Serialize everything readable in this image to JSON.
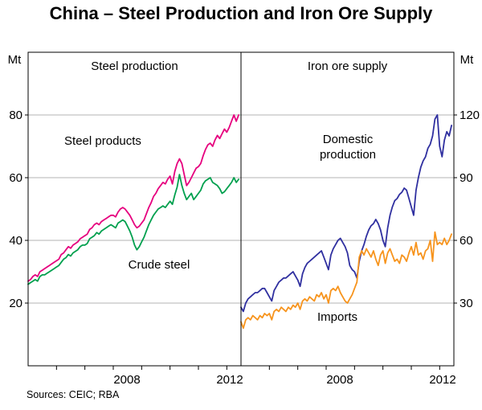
{
  "page": {
    "source": "Sources: CEIC; RBA"
  },
  "chart_data": {
    "type": "line",
    "title": "China – Steel Production and Iron Ore Supply",
    "x": {
      "start_year": 2005,
      "interval": "monthly",
      "end": 2012.5
    },
    "xticklabels": [
      "2008",
      "2012"
    ],
    "panels": [
      {
        "title": "Steel production",
        "unit": "Mt",
        "axis": "left",
        "ylim": [
          0,
          100
        ],
        "yticks": [
          20,
          40,
          60,
          80
        ],
        "series": [
          {
            "name": "Steel products",
            "color": "#e6007e",
            "values": [
              27,
              27.5,
              28.5,
              29,
              28.5,
              30,
              30.5,
              31,
              31.5,
              32,
              32.5,
              33,
              33.5,
              34,
              35.5,
              36,
              37,
              38,
              37.5,
              38.5,
              39,
              39.5,
              40.5,
              41,
              41.5,
              42,
              43.5,
              44,
              45,
              45.5,
              45,
              46,
              46.5,
              47,
              47.5,
              48,
              48,
              47.5,
              49,
              50,
              50.5,
              50,
              49,
              48,
              46.5,
              45,
              44,
              44.5,
              45.5,
              46.5,
              48.5,
              50.5,
              52,
              54,
              55,
              56.5,
              57.5,
              58.5,
              58,
              59.5,
              60.5,
              58,
              62,
              64.5,
              66,
              64.5,
              61,
              57.5,
              58.5,
              60,
              61.5,
              63,
              63.5,
              64.5,
              67,
              69,
              70.5,
              71,
              70,
              72,
              73.5,
              72.5,
              74,
              75.5,
              74.5,
              76,
              78,
              80,
              78,
              80
            ]
          },
          {
            "name": "Crude steel",
            "color": "#00a04e",
            "values": [
              26,
              26.5,
              27,
              27.5,
              27,
              28.5,
              29,
              29,
              29.5,
              30,
              30.5,
              31,
              31.5,
              32,
              33,
              34,
              34.5,
              35.5,
              35,
              36,
              36.5,
              37,
              38,
              38.5,
              38.5,
              39,
              40.5,
              41,
              41.5,
              42.5,
              42,
              43,
              43.5,
              44,
              44.5,
              45,
              44.5,
              44,
              45.5,
              46,
              46.5,
              46,
              44.5,
              43,
              41,
              38.5,
              37,
              38,
              39.5,
              41,
              43,
              45,
              46.5,
              48,
              49,
              50,
              50.5,
              51,
              50.5,
              51.5,
              52.5,
              51.5,
              54.5,
              57,
              61,
              57.5,
              55,
              53,
              54,
              55,
              53,
              54,
              55,
              56,
              58,
              59,
              59.5,
              60,
              58.5,
              58,
              57.5,
              56.5,
              55,
              55.5,
              56.5,
              57.5,
              58.5,
              60,
              58.5,
              59.5
            ]
          }
        ]
      },
      {
        "title": "Iron ore supply",
        "unit": "Mt",
        "axis": "right",
        "ylim": [
          0,
          150
        ],
        "yticks": [
          30,
          60,
          90,
          120
        ],
        "series": [
          {
            "name": "Domestic production",
            "label_lines": [
              "Domestic",
              "production"
            ],
            "color": "#3030a0",
            "values": [
              28,
              26,
              30,
              32,
              33,
              34,
              35,
              35,
              36,
              37,
              37,
              35,
              33,
              31,
              36,
              38,
              40,
              41,
              42,
              42,
              43,
              44,
              45,
              43,
              41,
              38,
              44,
              47,
              49,
              50,
              51,
              52,
              53,
              54,
              55,
              52,
              49,
              46,
              53,
              56,
              58,
              60,
              61,
              59,
              57,
              54,
              48,
              46,
              45,
              42,
              50,
              55,
              58,
              62,
              65,
              67,
              68,
              70,
              68,
              65,
              60,
              57,
              66,
              72,
              76,
              79,
              80,
              82,
              83,
              85,
              84,
              80,
              76,
              72,
              84,
              90,
              95,
              98,
              100,
              104,
              106,
              110,
              118,
              120,
              105,
              100,
              108,
              112,
              110,
              115
            ]
          },
          {
            "name": "Imports",
            "color": "#f7941d",
            "values": [
              21,
              18,
              22,
              23,
              22,
              24,
              23,
              22,
              24,
              23,
              25,
              24,
              25,
              22,
              26,
              27,
              26,
              28,
              27,
              26,
              28,
              27,
              29,
              28,
              30,
              27,
              31,
              32,
              31,
              33,
              32,
              31,
              34,
              33,
              35,
              32,
              34,
              30,
              36,
              37,
              36,
              38,
              35,
              33,
              31,
              30,
              32,
              34,
              37,
              40,
              52,
              55,
              53,
              56,
              54,
              52,
              55,
              51,
              48,
              53,
              55,
              49,
              54,
              56,
              53,
              50,
              51,
              49,
              53,
              52,
              50,
              54,
              57,
              53,
              59,
              53,
              54,
              51,
              55,
              56,
              60,
              50,
              64,
              58,
              59,
              58,
              61,
              58,
              60,
              63
            ]
          }
        ]
      }
    ]
  }
}
